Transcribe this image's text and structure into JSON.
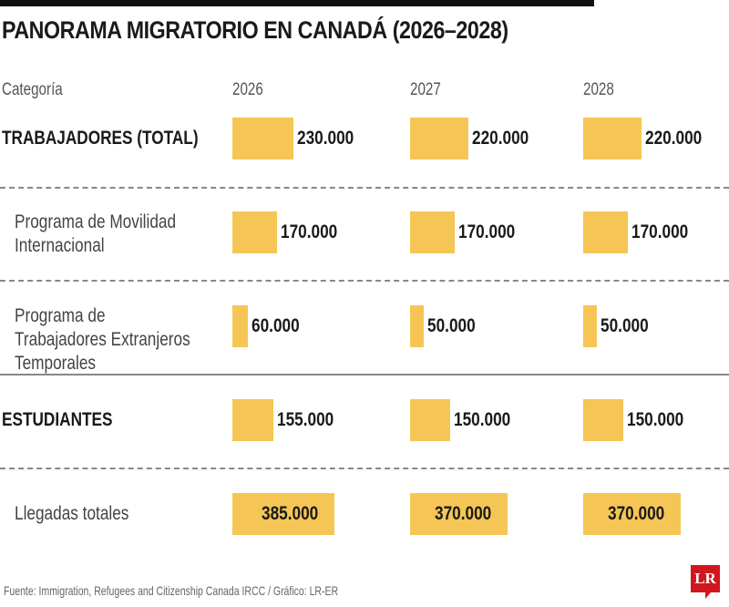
{
  "chart_data": {
    "type": "table",
    "title": "PANORAMA MIGRATORIO EN CANADÁ (2026–2028)",
    "columns": [
      "Categoría",
      "2026",
      "2027",
      "2028"
    ],
    "rows": [
      {
        "label": "TRABAJADORES (TOTAL)",
        "style": "bold",
        "values": [
          230000,
          220000,
          220000
        ],
        "labels": [
          "230.000",
          "220.000",
          "220.000"
        ]
      },
      {
        "label": "Programa de Movilidad Internacional",
        "style": "sub",
        "values": [
          170000,
          170000,
          170000
        ],
        "labels": [
          "170.000",
          "170.000",
          "170.000"
        ]
      },
      {
        "label": "Programa de Trabajadores Extranjeros Temporales",
        "style": "sub",
        "values": [
          60000,
          50000,
          50000
        ],
        "labels": [
          "60.000",
          "50.000",
          "50.000"
        ]
      },
      {
        "label": "ESTUDIANTES",
        "style": "bold",
        "values": [
          155000,
          150000,
          150000
        ],
        "labels": [
          "155.000",
          "150.000",
          "150.000"
        ]
      },
      {
        "label": "Llegadas totales",
        "style": "total",
        "values": [
          385000,
          370000,
          370000
        ],
        "labels": [
          "385.000",
          "370.000",
          "370.000"
        ]
      }
    ],
    "bar_color": "#f5c656"
  },
  "footer": "Fuente: Immigration, Refugees and Citizenship Canada IRCC / Gráfico: LR-ER",
  "logo": "LR"
}
